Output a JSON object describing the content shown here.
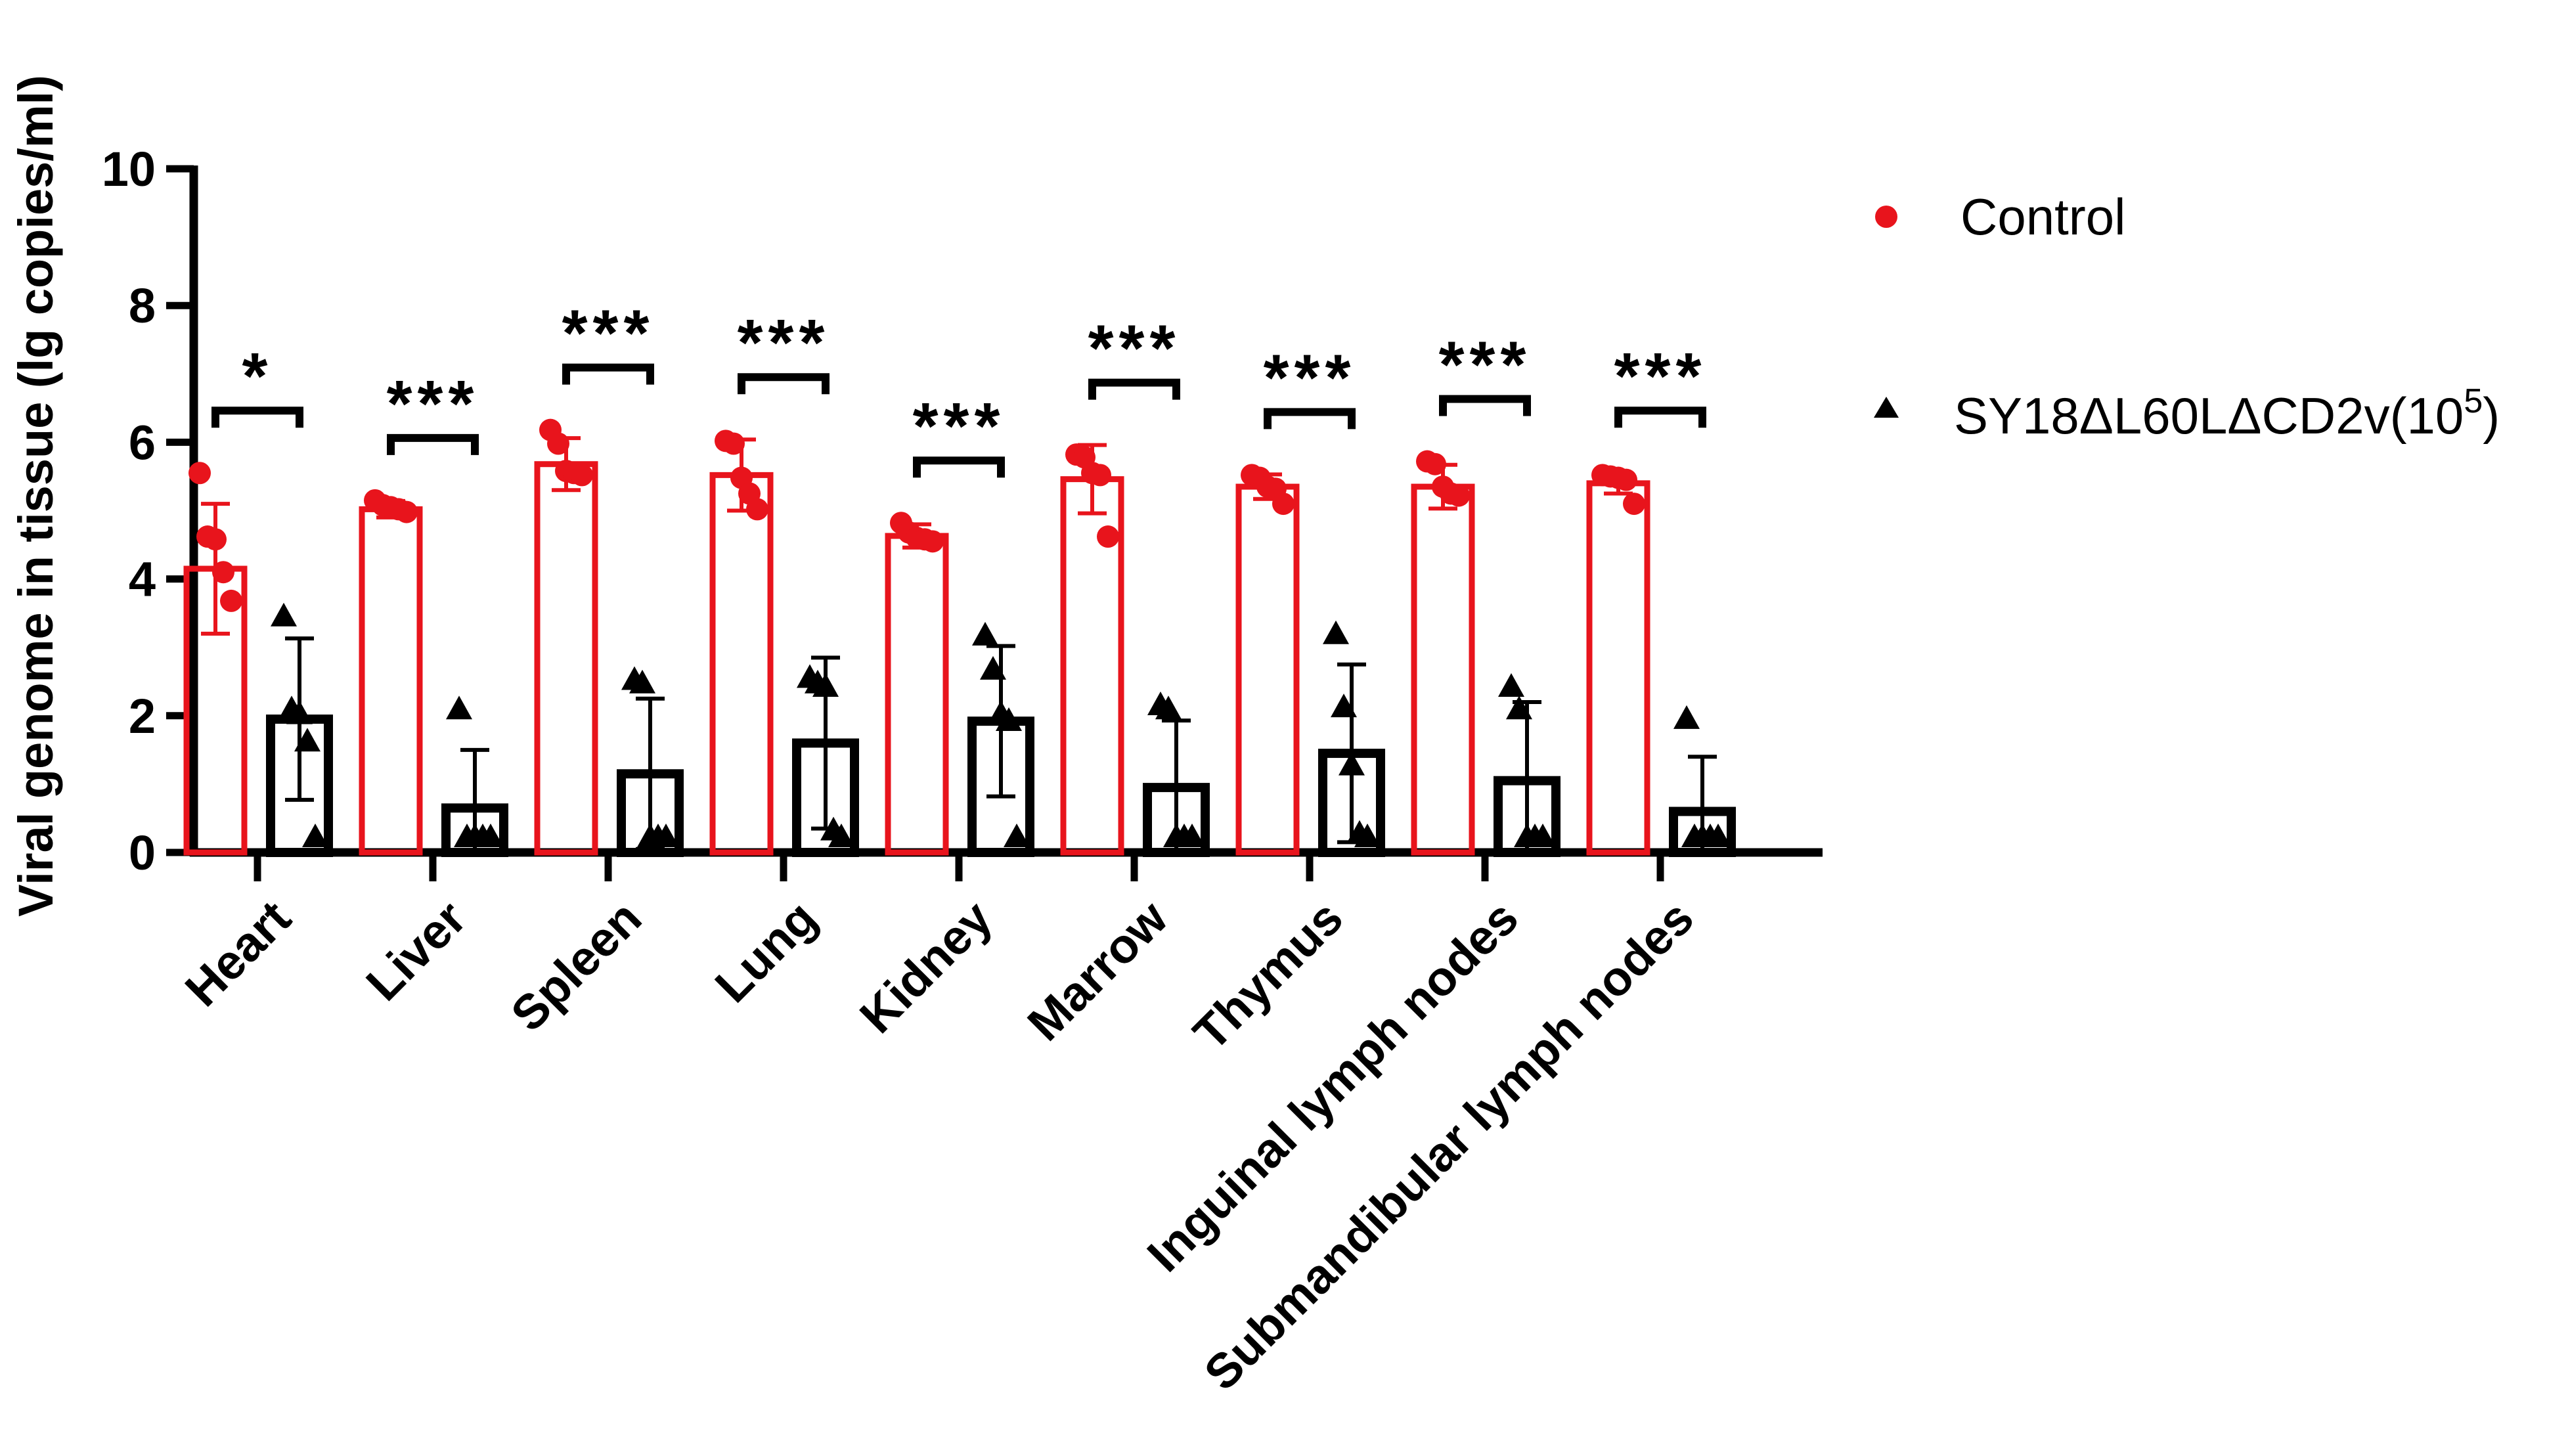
{
  "chart_data": {
    "type": "bar",
    "title": "",
    "xlabel": "",
    "ylabel": "Viral genome in tissue (lg copies/ml)",
    "ylim": [
      0,
      10
    ],
    "yticks": [
      0,
      2,
      4,
      6,
      8,
      10
    ],
    "categories": [
      "Heart",
      "Liver",
      "Spleen",
      "Lung",
      "Kidney",
      "Marrow",
      "Thymus",
      "Inguinal lymph nodes",
      "Submandibular lymph nodes"
    ],
    "legend_position": "top-right",
    "colors": {
      "control": "#e8141c",
      "treatment": "#000000"
    },
    "series": [
      {
        "name": "Control",
        "marker": "circle",
        "values": [
          4.15,
          5.02,
          5.68,
          5.52,
          4.63,
          5.46,
          5.35,
          5.35,
          5.4
        ],
        "sd": [
          0.95,
          0.12,
          0.38,
          0.52,
          0.17,
          0.5,
          0.18,
          0.32,
          0.15
        ],
        "points": [
          [
            5.55,
            4.62,
            4.58,
            4.1,
            3.68
          ],
          [
            5.15,
            5.08,
            5.05,
            5.02,
            4.98
          ],
          [
            6.18,
            5.98,
            5.58,
            5.55,
            5.52
          ],
          [
            6.02,
            5.98,
            5.48,
            5.25,
            5.02
          ],
          [
            4.82,
            4.68,
            4.6,
            4.58,
            4.55
          ],
          [
            5.82,
            5.78,
            5.55,
            5.52,
            4.62
          ],
          [
            5.52,
            5.48,
            5.35,
            5.32,
            5.1
          ],
          [
            5.72,
            5.68,
            5.35,
            5.25,
            5.22
          ],
          [
            5.52,
            5.5,
            5.48,
            5.45,
            5.1
          ]
        ]
      },
      {
        "name": "SY18ΔL60LΔCD2v(10",
        "name_sup": "5",
        "name_tail": ")",
        "marker": "triangle",
        "values": [
          1.95,
          0.65,
          1.15,
          1.6,
          1.92,
          0.95,
          1.45,
          1.05,
          0.6
        ],
        "sd": [
          1.18,
          0.85,
          1.1,
          1.25,
          1.1,
          0.98,
          1.3,
          1.15,
          0.8
        ],
        "points": [
          [
            3.48,
            2.12,
            2.05,
            1.65,
            0.25
          ],
          [
            2.12,
            0.25,
            0.25,
            0.25,
            0.25
          ],
          [
            2.55,
            2.5,
            0.25,
            0.25,
            0.25
          ],
          [
            2.58,
            2.5,
            2.45,
            0.35,
            0.25
          ],
          [
            3.2,
            2.7,
            2.05,
            1.95,
            0.25
          ],
          [
            2.18,
            2.12,
            0.25,
            0.25,
            0.25
          ],
          [
            3.22,
            2.15,
            1.3,
            0.3,
            0.25
          ],
          [
            2.45,
            2.12,
            0.25,
            0.25,
            0.25
          ],
          [
            1.98,
            0.25,
            0.25,
            0.25,
            0.25
          ]
        ]
      }
    ],
    "significance": [
      "*",
      "***",
      "***",
      "***",
      "***",
      "***",
      "***",
      "***",
      "***"
    ]
  }
}
